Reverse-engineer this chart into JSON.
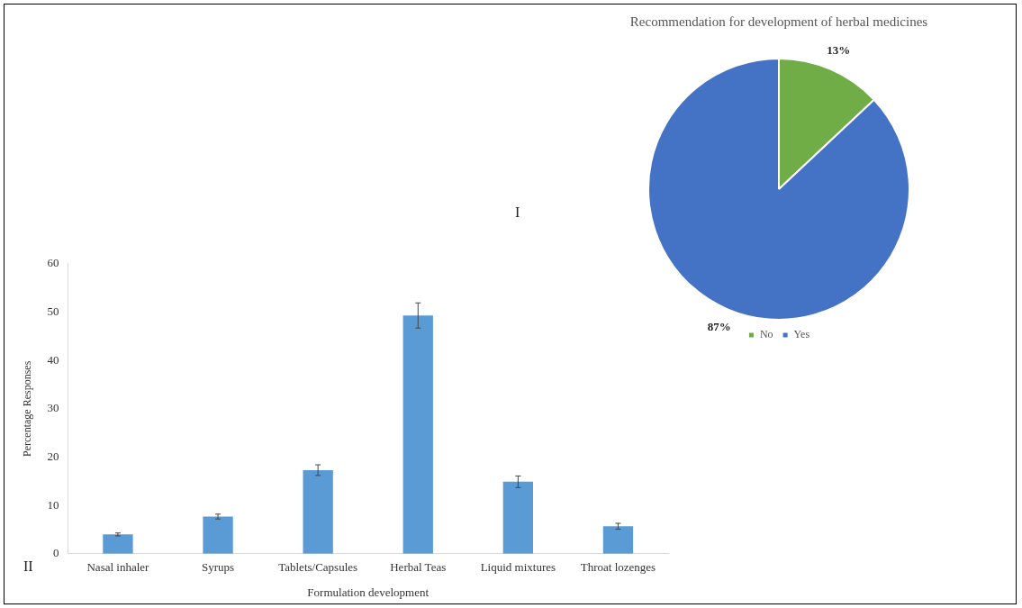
{
  "chart_data": [
    {
      "type": "pie",
      "title": "Recommendation for development of herbal medicines",
      "categories": [
        "No",
        "Yes"
      ],
      "values": [
        13,
        87
      ],
      "colors": [
        "#70ad47",
        "#4472c4"
      ],
      "value_labels": [
        "13%",
        "87%"
      ],
      "legend": "bottom",
      "annotations": [
        "I"
      ]
    },
    {
      "type": "bar",
      "categories": [
        "Nasal inhaler",
        "Syrups",
        "Tablets/Capsules",
        "Herbal Teas",
        "Liquid mixtures",
        "Throat lozenges"
      ],
      "values": [
        4.0,
        7.7,
        17.3,
        49.3,
        14.9,
        5.7
      ],
      "errors": [
        0.3,
        0.5,
        1.1,
        2.6,
        1.2,
        0.6
      ],
      "color": "#5b9bd5",
      "xlabel": "Formulation development",
      "ylabel": "Percentage Responses",
      "ylim": [
        0,
        60
      ],
      "yticks": [
        0,
        10,
        20,
        30,
        40,
        50,
        60
      ],
      "grid": false,
      "legend": false,
      "annotations": [
        "II"
      ]
    }
  ]
}
